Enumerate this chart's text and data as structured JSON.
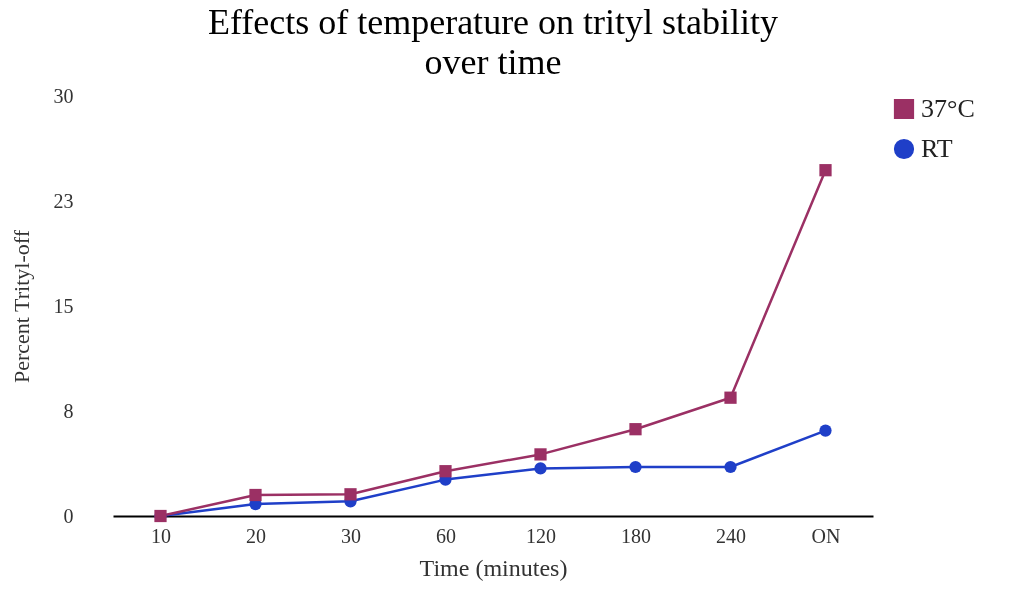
{
  "chart_data": {
    "type": "line",
    "title": "Effects of temperature on trityl stability\nover time",
    "xlabel": "Time (minutes)",
    "ylabel": "Percent Trityl-off",
    "categories": [
      "10",
      "20",
      "30",
      "60",
      "120",
      "180",
      "240",
      "ON"
    ],
    "series": [
      {
        "name": "37°C",
        "color": "#9b3064",
        "marker": "square",
        "values": [
          0,
          1.5,
          1.55,
          3.2,
          4.4,
          6.2,
          8.45,
          24.7
        ]
      },
      {
        "name": "RT",
        "color": "#1f3fc8",
        "marker": "circle",
        "values": [
          0,
          0.85,
          1.05,
          2.6,
          3.4,
          3.5,
          3.5,
          6.1
        ]
      }
    ],
    "ylim": [
      0,
      30
    ],
    "yticks": [
      0,
      {
        "value": 7.5,
        "label": "8"
      },
      15,
      {
        "value": 22.5,
        "label": "23"
      },
      30
    ],
    "grid": false,
    "legend": "right",
    "line_style": "solid"
  }
}
